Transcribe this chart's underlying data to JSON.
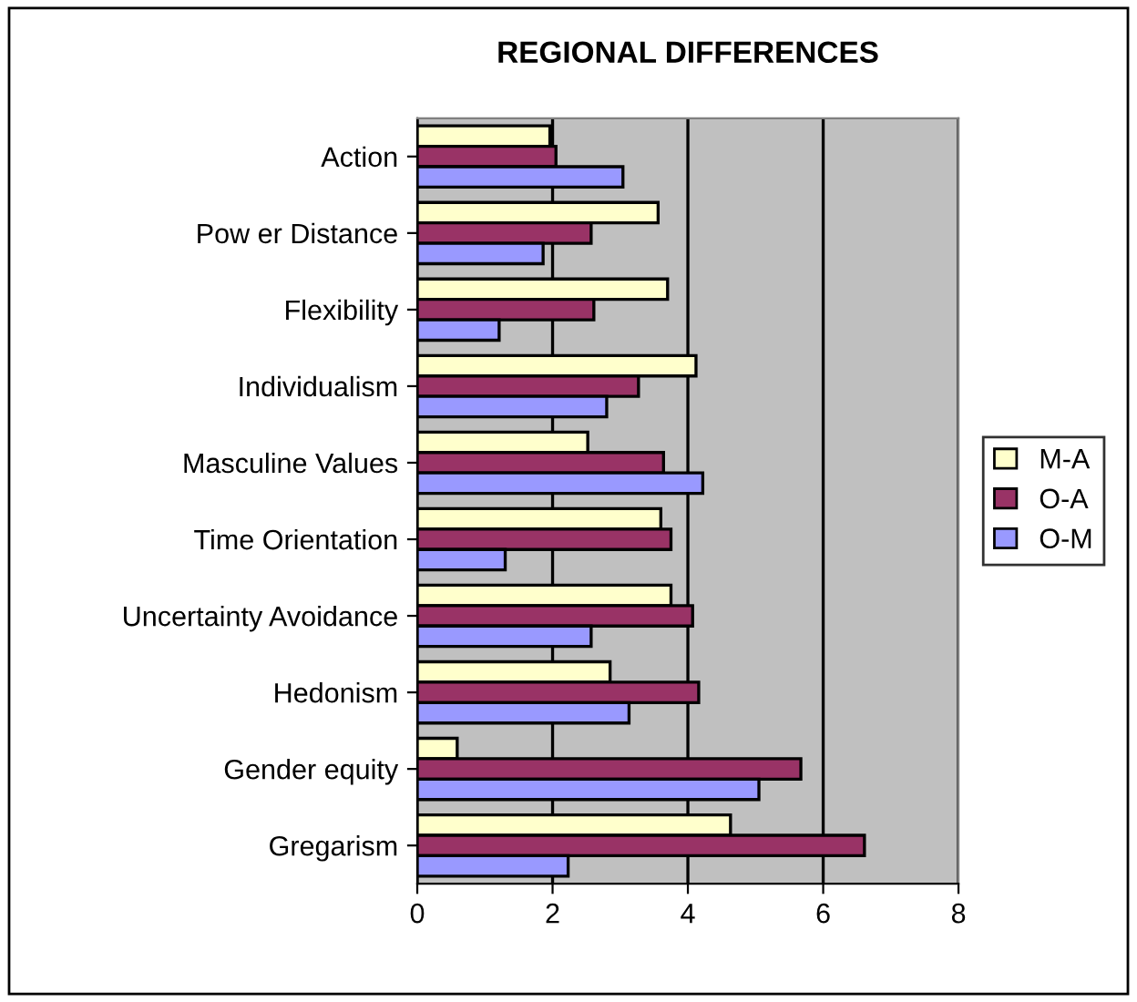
{
  "chart_data": {
    "type": "bar",
    "orientation": "horizontal",
    "title": "REGIONAL DIFFERENCES",
    "categories": [
      "Action",
      "Pow er Distance",
      "Flexibility",
      "Individualism",
      "Masculine Values",
      "Time Orientation",
      "Uncertainty Avoidance",
      "Hedonism",
      "Gender equity",
      "Gregarism"
    ],
    "series": [
      {
        "name": "M-A",
        "color": "#ffffcc",
        "values": [
          1.96,
          3.56,
          3.7,
          4.12,
          2.52,
          3.6,
          3.75,
          2.85,
          0.59,
          4.63
        ]
      },
      {
        "name": "O-A",
        "color": "#993366",
        "values": [
          2.05,
          2.57,
          2.61,
          3.27,
          3.64,
          3.75,
          4.07,
          4.16,
          5.67,
          6.61
        ]
      },
      {
        "name": "O-M",
        "color": "#9999ff",
        "values": [
          3.04,
          1.86,
          1.21,
          2.8,
          4.22,
          1.3,
          2.57,
          3.13,
          5.05,
          2.23
        ]
      }
    ],
    "xlim": [
      0,
      8
    ],
    "xticks": [
      0,
      2,
      4,
      6,
      8
    ],
    "grid": "x",
    "legend": "right"
  }
}
